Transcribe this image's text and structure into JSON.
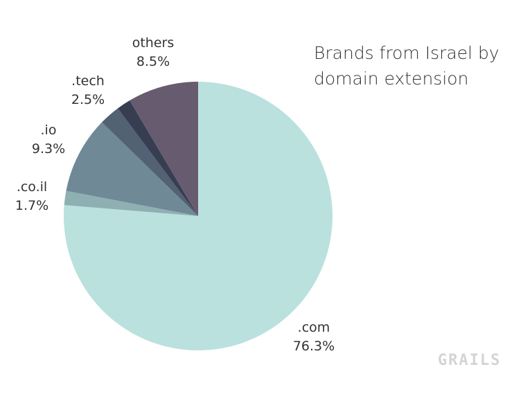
{
  "chart_data": {
    "type": "pie",
    "title": "Brands from Israel by domain extension",
    "title_lines": [
      "Brands from Israel by",
      "domain extension"
    ],
    "start": "top, clockwise",
    "slices": [
      {
        "name": ".com",
        "value": 76.3,
        "label": "76.3%",
        "color": "#bae1dd"
      },
      {
        "name": ".co.il",
        "value": 1.7,
        "label": "1.7%",
        "color": "#8fb0b3"
      },
      {
        "name": ".io",
        "value": 9.3,
        "label": "9.3%",
        "color": "#6f8a96"
      },
      {
        "name": ".tech",
        "value": 2.5,
        "label": "2.5%",
        "color": "#526173"
      },
      {
        "name": "",
        "value": 1.7,
        "label": "",
        "color": "#383e52"
      },
      {
        "name": "others",
        "value": 8.5,
        "label": "8.5%",
        "color": "#675b70"
      }
    ]
  },
  "watermark": "GRAILS"
}
